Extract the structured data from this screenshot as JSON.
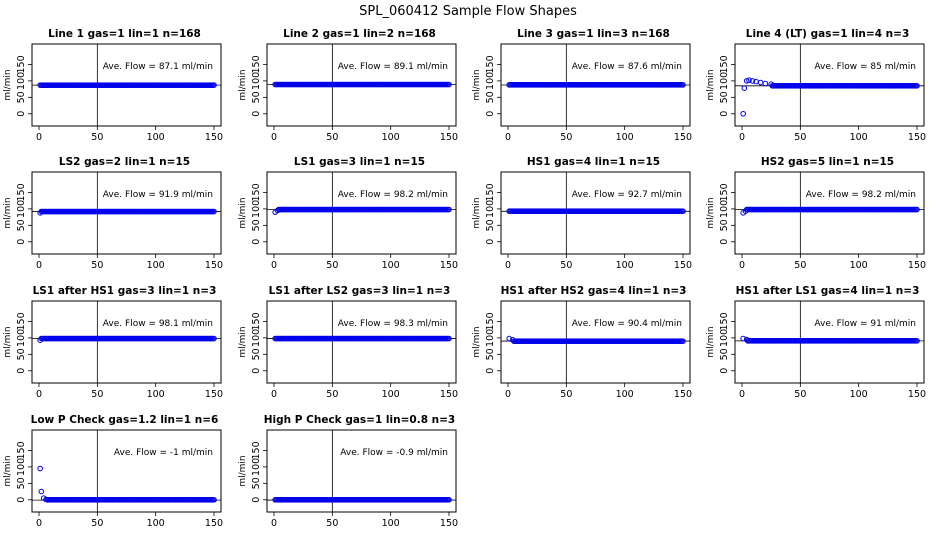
{
  "figure": {
    "title": "SPL_060412  Sample Flow Shapes",
    "ylabel": "ml/min",
    "colors": {
      "points": "#0000ee",
      "axes": "#000000"
    },
    "x_ticks": [
      0,
      50,
      100,
      150
    ],
    "y_ticks": [
      0,
      50,
      100,
      150
    ]
  },
  "chart_data": [
    {
      "type": "scatter",
      "title": "Line 1 gas=1 lin=1 n=168",
      "annotation": "Ave. Flow =  87.1  ml/min",
      "xlim": [
        0,
        150
      ],
      "ylim": [
        -25,
        200
      ],
      "ylabel": "ml/min",
      "mean": 87.1,
      "vline_x": 50,
      "series": [
        {
          "x_range": [
            1,
            150
          ],
          "values": "constant ~87",
          "start_points": []
        }
      ]
    },
    {
      "type": "scatter",
      "title": "Line 2 gas=1 lin=2 n=168",
      "annotation": "Ave. Flow =  89.1  ml/min",
      "xlim": [
        0,
        150
      ],
      "ylim": [
        -25,
        200
      ],
      "ylabel": "ml/min",
      "mean": 89.1,
      "vline_x": 50,
      "series": [
        {
          "x_range": [
            1,
            150
          ],
          "values": "constant ~89",
          "start_points": []
        }
      ]
    },
    {
      "type": "scatter",
      "title": "Line 3 gas=1 lin=3 n=168",
      "annotation": "Ave. Flow =  87.6  ml/min",
      "xlim": [
        0,
        150
      ],
      "ylim": [
        -25,
        200
      ],
      "ylabel": "ml/min",
      "mean": 87.6,
      "vline_x": 50,
      "series": [
        {
          "x_range": [
            1,
            150
          ],
          "values": "constant ~88",
          "start_points": []
        }
      ]
    },
    {
      "type": "scatter",
      "title": "Line 4 (LT) gas=1 lin=4 n=3",
      "annotation": "Ave. Flow =  85  ml/min",
      "xlim": [
        0,
        150
      ],
      "ylim": [
        -25,
        200
      ],
      "ylabel": "ml/min",
      "mean": 85,
      "vline_x": 50,
      "series": [
        {
          "x_range": [
            1,
            150
          ],
          "values": "overshoot ~100 then ~85",
          "start_points": [
            [
              1,
              0
            ],
            [
              2,
              78
            ],
            [
              4,
              100
            ],
            [
              6,
              102
            ],
            [
              9,
              100
            ],
            [
              12,
              98
            ],
            [
              16,
              95
            ],
            [
              20,
              92
            ],
            [
              25,
              90
            ]
          ]
        }
      ]
    },
    {
      "type": "scatter",
      "title": "LS2 gas=2 lin=1 n=15",
      "annotation": "Ave. Flow =  91.9  ml/min",
      "xlim": [
        0,
        150
      ],
      "ylim": [
        -25,
        200
      ],
      "ylabel": "ml/min",
      "mean": 91.9,
      "vline_x": 50,
      "series": [
        {
          "x_range": [
            1,
            150
          ],
          "values": "constant ~92",
          "start_points": [
            [
              1,
              88
            ]
          ]
        }
      ]
    },
    {
      "type": "scatter",
      "title": "LS1 gas=3 lin=1 n=15",
      "annotation": "Ave. Flow =  98.2  ml/min",
      "xlim": [
        0,
        150
      ],
      "ylim": [
        -25,
        200
      ],
      "ylabel": "ml/min",
      "mean": 98.2,
      "vline_x": 50,
      "series": [
        {
          "x_range": [
            1,
            150
          ],
          "values": "constant ~98",
          "start_points": [
            [
              1,
              90
            ],
            [
              3,
              95
            ]
          ]
        }
      ]
    },
    {
      "type": "scatter",
      "title": "HS1 gas=4 lin=1 n=15",
      "annotation": "Ave. Flow =  92.7  ml/min",
      "xlim": [
        0,
        150
      ],
      "ylim": [
        -25,
        200
      ],
      "ylabel": "ml/min",
      "mean": 92.7,
      "vline_x": 50,
      "series": [
        {
          "x_range": [
            1,
            150
          ],
          "values": "constant ~93",
          "start_points": []
        }
      ]
    },
    {
      "type": "scatter",
      "title": "HS2 gas=5 lin=1 n=15",
      "annotation": "Ave. Flow =  98.2  ml/min",
      "xlim": [
        0,
        150
      ],
      "ylim": [
        -25,
        200
      ],
      "ylabel": "ml/min",
      "mean": 98.2,
      "vline_x": 50,
      "series": [
        {
          "x_range": [
            1,
            150
          ],
          "values": "constant ~98",
          "start_points": [
            [
              1,
              88
            ],
            [
              3,
              93
            ]
          ]
        }
      ]
    },
    {
      "type": "scatter",
      "title": "LS1 after HS1 gas=3 lin=1 n=3",
      "annotation": "Ave. Flow =  98.1  ml/min",
      "xlim": [
        0,
        150
      ],
      "ylim": [
        -25,
        200
      ],
      "ylabel": "ml/min",
      "mean": 98.1,
      "vline_x": 50,
      "series": [
        {
          "x_range": [
            1,
            150
          ],
          "values": "constant ~98",
          "start_points": [
            [
              1,
              93
            ]
          ]
        }
      ]
    },
    {
      "type": "scatter",
      "title": "LS1 after LS2 gas=3 lin=1 n=3",
      "annotation": "Ave. Flow =  98.3  ml/min",
      "xlim": [
        0,
        150
      ],
      "ylim": [
        -25,
        200
      ],
      "ylabel": "ml/min",
      "mean": 98.3,
      "vline_x": 50,
      "series": [
        {
          "x_range": [
            1,
            150
          ],
          "values": "constant ~98",
          "start_points": []
        }
      ]
    },
    {
      "type": "scatter",
      "title": "HS1 after HS2 gas=4 lin=1 n=3",
      "annotation": "Ave. Flow =  90.4  ml/min",
      "xlim": [
        0,
        150
      ],
      "ylim": [
        -25,
        200
      ],
      "ylabel": "ml/min",
      "mean": 90.4,
      "vline_x": 50,
      "series": [
        {
          "x_range": [
            1,
            150
          ],
          "values": "constant ~90",
          "start_points": [
            [
              1,
              98
            ],
            [
              4,
              94
            ]
          ]
        }
      ]
    },
    {
      "type": "scatter",
      "title": "HS1 after LS1 gas=4 lin=1 n=3",
      "annotation": "Ave. Flow =  91  ml/min",
      "xlim": [
        0,
        150
      ],
      "ylim": [
        -25,
        200
      ],
      "ylabel": "ml/min",
      "mean": 91,
      "vline_x": 50,
      "series": [
        {
          "x_range": [
            1,
            150
          ],
          "values": "constant ~91",
          "start_points": [
            [
              1,
              98
            ],
            [
              4,
              95
            ]
          ]
        }
      ]
    },
    {
      "type": "scatter",
      "title": "Low P Check gas=1.2 lin=1 n=6",
      "annotation": "Ave. Flow =  -1  ml/min",
      "xlim": [
        0,
        150
      ],
      "ylim": [
        -25,
        200
      ],
      "ylabel": "ml/min",
      "mean": -1,
      "vline_x": 50,
      "series": [
        {
          "x_range": [
            1,
            150
          ],
          "values": "constant ~0",
          "start_points": [
            [
              1,
              95
            ],
            [
              2,
              25
            ],
            [
              4,
              5
            ],
            [
              6,
              1
            ]
          ]
        }
      ]
    },
    {
      "type": "scatter",
      "title": "High P Check gas=1 lin=0.8 n=3",
      "annotation": "Ave. Flow =  -0.9  ml/min",
      "xlim": [
        0,
        150
      ],
      "ylim": [
        -25,
        200
      ],
      "ylabel": "ml/min",
      "mean": -0.9,
      "vline_x": 50,
      "series": [
        {
          "x_range": [
            1,
            150
          ],
          "values": "constant ~0",
          "start_points": []
        }
      ]
    }
  ]
}
